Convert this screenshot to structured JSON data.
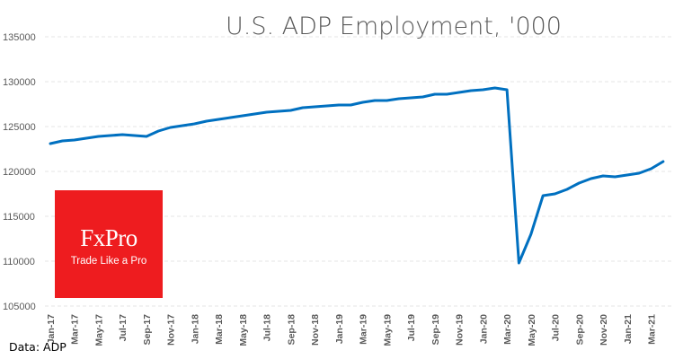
{
  "chart_data": {
    "type": "line",
    "title": "U.S. ADP Employment, '000",
    "xlabel": "",
    "ylabel": "",
    "ylim": [
      105000,
      135000
    ],
    "yticks": [
      105000,
      110000,
      115000,
      120000,
      125000,
      130000,
      135000
    ],
    "grid": true,
    "legend": "none",
    "x_tick_labels": [
      "Jan-17",
      "Mar-17",
      "May-17",
      "Jul-17",
      "Sep-17",
      "Nov-17",
      "Jan-18",
      "Mar-18",
      "May-18",
      "Jul-18",
      "Sep-18",
      "Nov-18",
      "Jan-19",
      "Mar-19",
      "May-19",
      "Jul-19",
      "Sep-19",
      "Nov-19",
      "Jan-20",
      "Mar-20",
      "May-20",
      "Jul-20",
      "Sep-20",
      "Nov-20",
      "Jan-21",
      "Mar-21"
    ],
    "series": [
      {
        "name": "ADP Employment",
        "color": "#0070c0",
        "x": [
          "Jan-17",
          "Feb-17",
          "Mar-17",
          "Apr-17",
          "May-17",
          "Jun-17",
          "Jul-17",
          "Aug-17",
          "Sep-17",
          "Oct-17",
          "Nov-17",
          "Dec-17",
          "Jan-18",
          "Feb-18",
          "Mar-18",
          "Apr-18",
          "May-18",
          "Jun-18",
          "Jul-18",
          "Aug-18",
          "Sep-18",
          "Oct-18",
          "Nov-18",
          "Dec-18",
          "Jan-19",
          "Feb-19",
          "Mar-19",
          "Apr-19",
          "May-19",
          "Jun-19",
          "Jul-19",
          "Aug-19",
          "Sep-19",
          "Oct-19",
          "Nov-19",
          "Dec-19",
          "Jan-20",
          "Feb-20",
          "Mar-20",
          "Apr-20",
          "May-20",
          "Jun-20",
          "Jul-20",
          "Aug-20",
          "Sep-20",
          "Oct-20",
          "Nov-20",
          "Dec-20",
          "Jan-21",
          "Feb-21",
          "Mar-21",
          "Apr-21"
        ],
        "values": [
          123100,
          123400,
          123500,
          123700,
          123900,
          124000,
          124100,
          124000,
          123900,
          124500,
          124900,
          125100,
          125300,
          125600,
          125800,
          126000,
          126200,
          126400,
          126600,
          126700,
          126800,
          127100,
          127200,
          127300,
          127400,
          127400,
          127700,
          127900,
          127900,
          128100,
          128200,
          128300,
          128600,
          128600,
          128800,
          129000,
          129100,
          129300,
          129100,
          109800,
          113000,
          117300,
          117500,
          118000,
          118700,
          119200,
          119500,
          119400,
          119600,
          119800,
          120300,
          121100
        ]
      }
    ]
  },
  "footer": {
    "source": "Data: ADP"
  },
  "logo": {
    "brand": "FxPro",
    "tagline": "Trade Like a Pro",
    "color": "#ee1c1f"
  }
}
